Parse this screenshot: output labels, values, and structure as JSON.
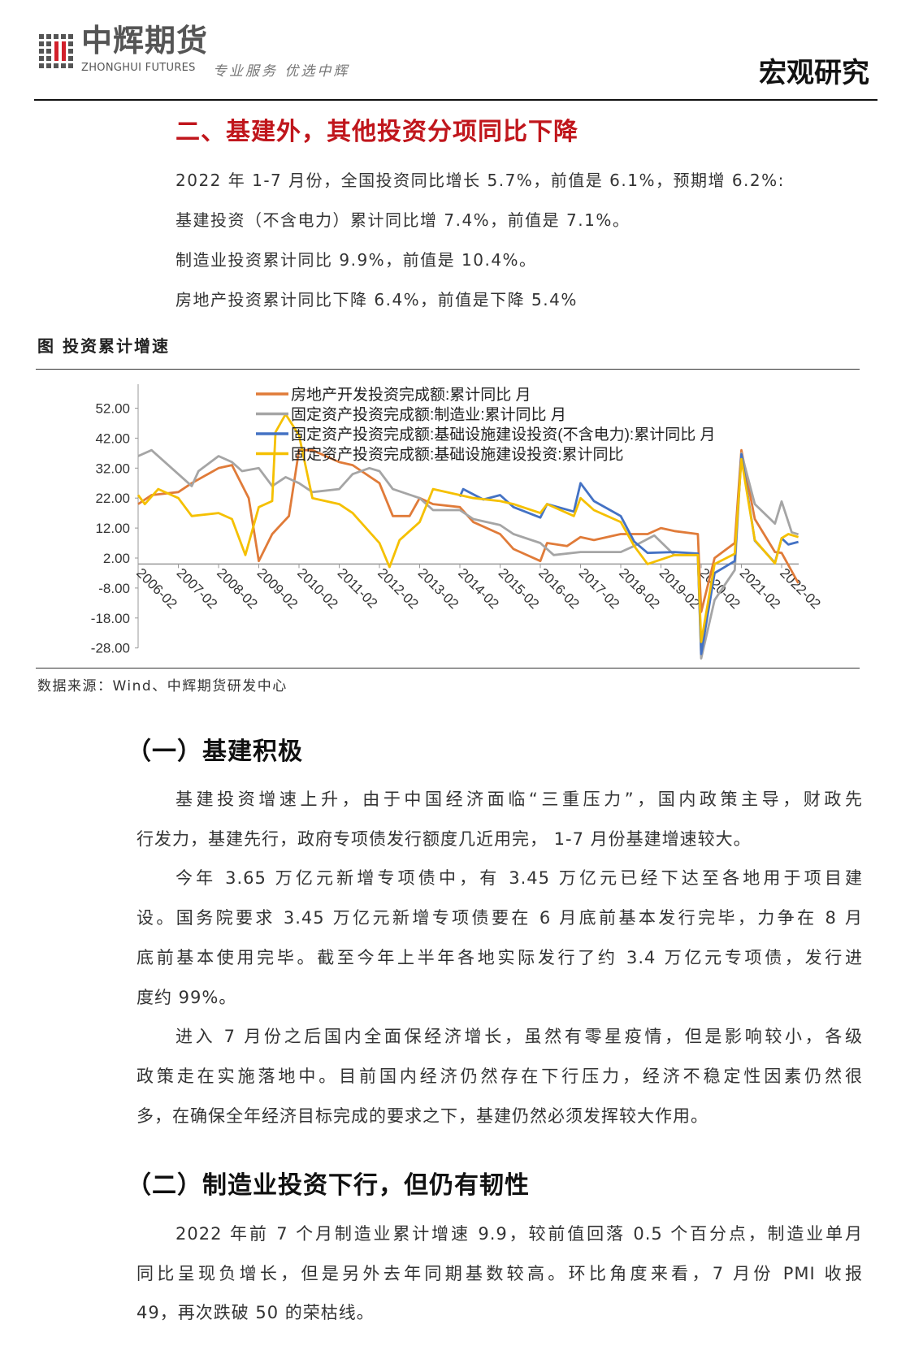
{
  "header": {
    "logo_cn": "中辉期货",
    "logo_en": "ZHONGHUI FUTURES",
    "slogan": "专业服务 优选中辉",
    "section_tag": "宏观研究"
  },
  "main_title": "二、基建外，其他投资分项同比下降",
  "summary": [
    "2022 年 1-7 月份，全国投资同比增长 5.7%，前值是 6.1%，预期增 6.2%:",
    "基建投资（不含电力）累计同比增 7.4%，前值是 7.1%。",
    "制造业投资累计同比 9.9%，前值是 10.4%。",
    "房地产投资累计同比下降 6.4%，前值是下降 5.4%"
  ],
  "figure": {
    "caption": "图  投资累计增速",
    "source": "数据来源：Wind、中辉期货研发中心"
  },
  "chart_data": {
    "type": "line",
    "title": "",
    "xlabel": "",
    "ylabel": "",
    "ylim": [
      -28,
      60
    ],
    "yticks": [
      "52.00",
      "42.00",
      "32.00",
      "22.00",
      "12.00",
      "2.00",
      "-8.00",
      "-18.00",
      "-28.00"
    ],
    "xticks": [
      "2006-02",
      "2007-02",
      "2008-02",
      "2009-02",
      "2010-02",
      "2011-02",
      "2012-02",
      "2013-02",
      "2014-02",
      "2015-02",
      "2016-02",
      "2017-02",
      "2018-02",
      "2019-02",
      "2020-02",
      "2021-02",
      "2022-02"
    ],
    "grid": false,
    "legend": "top-center",
    "series": [
      {
        "name": "房地产开发投资完成额:累计同比 月",
        "color": "#e07b39",
        "points": [
          [
            "2006-02",
            20
          ],
          [
            "2006-06",
            23
          ],
          [
            "2007-02",
            24
          ],
          [
            "2007-06",
            27
          ],
          [
            "2008-02",
            32
          ],
          [
            "2008-06",
            33
          ],
          [
            "2008-11",
            22
          ],
          [
            "2009-02",
            1
          ],
          [
            "2009-06",
            10
          ],
          [
            "2009-11",
            16
          ],
          [
            "2010-02",
            38
          ],
          [
            "2010-06",
            38
          ],
          [
            "2011-02",
            34
          ],
          [
            "2011-06",
            33
          ],
          [
            "2012-02",
            27
          ],
          [
            "2012-06",
            16
          ],
          [
            "2012-11",
            16
          ],
          [
            "2013-02",
            22
          ],
          [
            "2013-06",
            20
          ],
          [
            "2014-02",
            19
          ],
          [
            "2014-06",
            14
          ],
          [
            "2015-02",
            10
          ],
          [
            "2015-06",
            5
          ],
          [
            "2016-02",
            1
          ],
          [
            "2016-04",
            7
          ],
          [
            "2016-10",
            6
          ],
          [
            "2017-02",
            9
          ],
          [
            "2017-06",
            8
          ],
          [
            "2018-02",
            10
          ],
          [
            "2018-06",
            10
          ],
          [
            "2018-10",
            10
          ],
          [
            "2019-02",
            12
          ],
          [
            "2019-06",
            11
          ],
          [
            "2020-01",
            10
          ],
          [
            "2020-02",
            -16
          ],
          [
            "2020-06",
            2
          ],
          [
            "2020-12",
            7
          ],
          [
            "2021-02",
            38
          ],
          [
            "2021-06",
            15
          ],
          [
            "2021-12",
            4
          ],
          [
            "2022-02",
            3.7
          ],
          [
            "2022-07",
            -6.4
          ]
        ]
      },
      {
        "name": "固定资产投资完成额:制造业:累计同比 月",
        "color": "#a5a5a5",
        "points": [
          [
            "2006-02",
            36
          ],
          [
            "2006-06",
            38
          ],
          [
            "2007-02",
            30
          ],
          [
            "2007-06",
            26
          ],
          [
            "2007-08",
            31
          ],
          [
            "2008-02",
            36
          ],
          [
            "2008-06",
            34
          ],
          [
            "2008-09",
            31
          ],
          [
            "2009-02",
            32
          ],
          [
            "2009-06",
            26
          ],
          [
            "2009-10",
            29
          ],
          [
            "2010-02",
            27
          ],
          [
            "2010-06",
            24
          ],
          [
            "2011-02",
            25
          ],
          [
            "2011-06",
            30
          ],
          [
            "2011-11",
            32
          ],
          [
            "2012-02",
            31
          ],
          [
            "2012-06",
            25
          ],
          [
            "2013-02",
            22
          ],
          [
            "2013-06",
            18
          ],
          [
            "2014-02",
            18
          ],
          [
            "2014-06",
            15
          ],
          [
            "2015-02",
            13
          ],
          [
            "2015-06",
            10
          ],
          [
            "2016-02",
            7
          ],
          [
            "2016-06",
            3
          ],
          [
            "2017-02",
            4
          ],
          [
            "2017-06",
            4
          ],
          [
            "2018-02",
            4
          ],
          [
            "2018-06",
            6
          ],
          [
            "2018-12",
            9.5
          ],
          [
            "2019-06",
            3
          ],
          [
            "2020-01",
            3
          ],
          [
            "2020-02",
            -31.5
          ],
          [
            "2020-06",
            -12
          ],
          [
            "2020-12",
            -2
          ],
          [
            "2021-02",
            37
          ],
          [
            "2021-06",
            20
          ],
          [
            "2021-12",
            13.5
          ],
          [
            "2022-02",
            20.9
          ],
          [
            "2022-05",
            10.6
          ],
          [
            "2022-07",
            9.9
          ]
        ]
      },
      {
        "name": "固定资产投资完成额:基础设施建设投资(不含电力):累计同比 月",
        "color": "#4472c4",
        "points": [
          [
            "2014-02",
            22.5
          ],
          [
            "2014-03",
            25
          ],
          [
            "2014-09",
            21.5
          ],
          [
            "2015-02",
            23
          ],
          [
            "2015-06",
            19
          ],
          [
            "2016-02",
            15.5
          ],
          [
            "2016-04",
            20
          ],
          [
            "2016-12",
            17.5
          ],
          [
            "2017-02",
            27
          ],
          [
            "2017-06",
            21
          ],
          [
            "2018-02",
            16
          ],
          [
            "2018-06",
            7.5
          ],
          [
            "2018-10",
            3.7
          ],
          [
            "2019-06",
            4
          ],
          [
            "2020-01",
            3.5
          ],
          [
            "2020-02",
            -30
          ],
          [
            "2020-06",
            -3
          ],
          [
            "2020-12",
            1
          ],
          [
            "2021-02",
            36.6
          ],
          [
            "2021-06",
            7.8
          ],
          [
            "2021-12",
            0.4
          ],
          [
            "2022-02",
            8.6
          ],
          [
            "2022-04",
            6.5
          ],
          [
            "2022-07",
            7.4
          ]
        ]
      },
      {
        "name": "固定资产投资完成额:基础设施建设投资:累计同比",
        "color": "#f5c000",
        "points": [
          [
            "2006-02",
            23
          ],
          [
            "2006-04",
            20
          ],
          [
            "2006-08",
            25
          ],
          [
            "2007-02",
            22
          ],
          [
            "2007-06",
            16
          ],
          [
            "2008-02",
            17
          ],
          [
            "2008-06",
            15
          ],
          [
            "2008-10",
            3
          ],
          [
            "2008-12",
            11
          ],
          [
            "2009-02",
            19
          ],
          [
            "2009-06",
            21
          ],
          [
            "2009-07",
            44
          ],
          [
            "2009-10",
            50
          ],
          [
            "2010-02",
            43
          ],
          [
            "2010-06",
            22
          ],
          [
            "2011-02",
            20
          ],
          [
            "2011-06",
            17
          ],
          [
            "2012-02",
            7
          ],
          [
            "2012-05",
            -1
          ],
          [
            "2012-08",
            8
          ],
          [
            "2013-02",
            14
          ],
          [
            "2013-06",
            25
          ],
          [
            "2014-02",
            23
          ],
          [
            "2014-06",
            22
          ],
          [
            "2015-02",
            21
          ],
          [
            "2015-06",
            20
          ],
          [
            "2016-02",
            17
          ],
          [
            "2016-04",
            20
          ],
          [
            "2016-12",
            16
          ],
          [
            "2017-02",
            22
          ],
          [
            "2017-06",
            18
          ],
          [
            "2018-02",
            14
          ],
          [
            "2018-06",
            6
          ],
          [
            "2018-10",
            0
          ],
          [
            "2019-06",
            3
          ],
          [
            "2020-01",
            3
          ],
          [
            "2020-02",
            -26
          ],
          [
            "2020-06",
            0
          ],
          [
            "2020-12",
            3.4
          ],
          [
            "2021-02",
            35
          ],
          [
            "2021-06",
            8
          ],
          [
            "2021-12",
            0.2
          ],
          [
            "2022-02",
            8.6
          ],
          [
            "2022-04",
            10
          ],
          [
            "2022-07",
            9
          ]
        ]
      }
    ]
  },
  "section1": {
    "heading": "（一）基建积极",
    "lines": [
      "基建投资增速上升，由于中国经济面临“三重压力”，国内政策主导，财政先",
      "行发力，基建先行，政府专项债发行额度几近用完， 1-7 月份基建增速较大。",
      "今年 3.65 万亿元新增专项债中，有 3.45 万亿元已经下达至各地用于项目建",
      "设。国务院要求 3.45 万亿元新增专项债要在 6 月底前基本发行完毕，力争在 8 月",
      "底前基本使用完毕。截至今年上半年各地实际发行了约 3.4 万亿元专项债，发行进",
      "度约 99%。",
      "进入 7 月份之后国内全面保经济增长，虽然有零星疫情，但是影响较小，各级",
      "政策走在实施落地中。目前国内经济仍然存在下行压力，经济不稳定性因素仍然很",
      "多，在确保全年经济目标完成的要求之下，基建仍然必须发挥较大作用。"
    ]
  },
  "section2": {
    "heading": "（二）制造业投资下行，但仍有韧性",
    "lines": [
      "2022 年前 7 个月制造业累计增速 9.9，较前值回落 0.5 个百分点，制造业单月",
      "同比呈现负增长，但是另外去年同期基数较高。环比角度来看，7 月份 PMI 收报",
      "49，再次跌破 50 的荣枯线。"
    ]
  }
}
